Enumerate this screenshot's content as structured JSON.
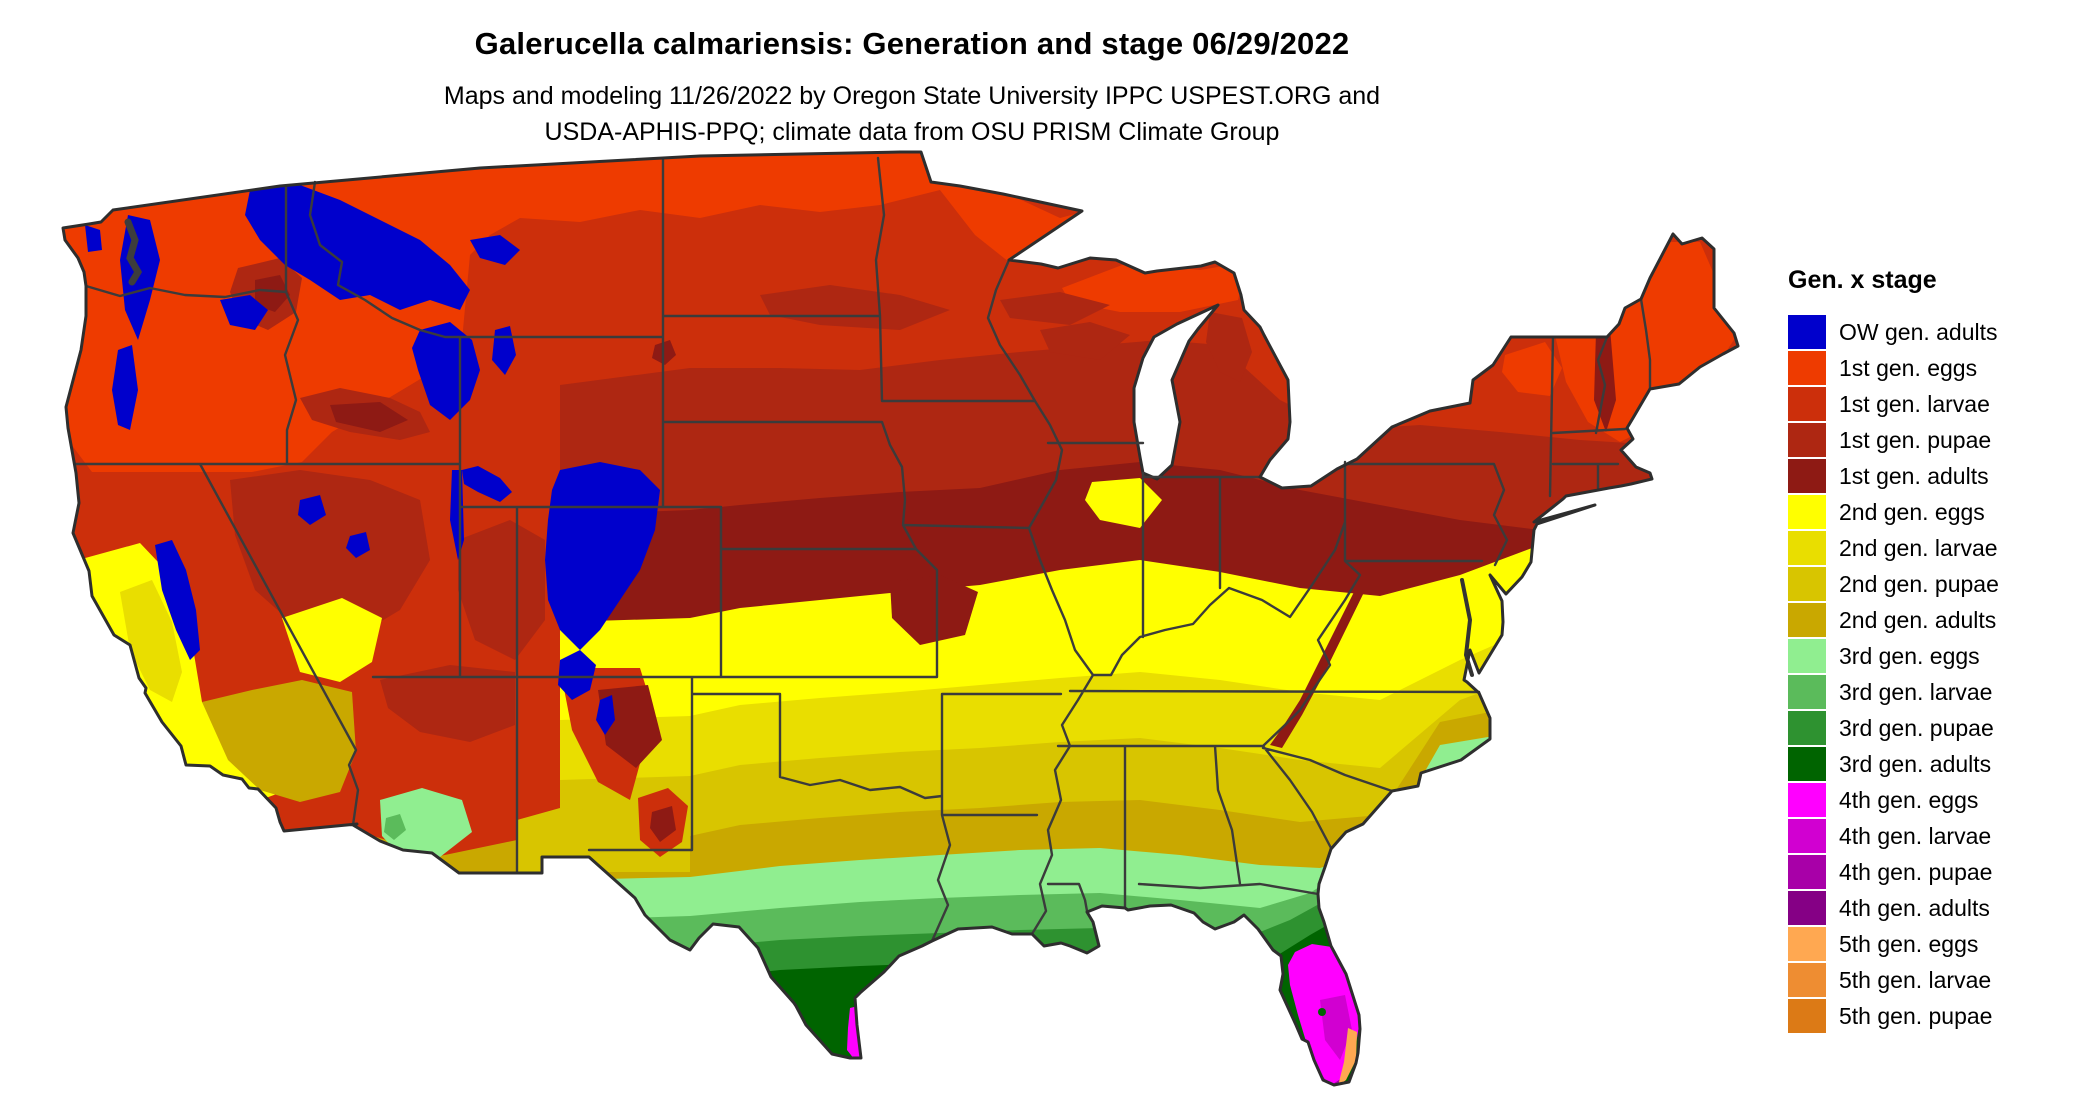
{
  "header": {
    "title": "Galerucella calmariensis: Generation and stage 06/29/2022",
    "subtitle_line1": "Maps and modeling 11/26/2022 by Oregon State University IPPC USPEST.ORG and",
    "subtitle_line2": "USDA-APHIS-PPQ; climate data from OSU PRISM Climate Group"
  },
  "legend": {
    "title": "Gen. x stage",
    "items": [
      {
        "label": "OW gen. adults",
        "color": "#0000CC"
      },
      {
        "label": "1st gen. eggs",
        "color": "#EE3B00"
      },
      {
        "label": "1st gen. larvae",
        "color": "#CC2F0B"
      },
      {
        "label": "1st gen. pupae",
        "color": "#AE2712"
      },
      {
        "label": "1st gen. adults",
        "color": "#8E1A14"
      },
      {
        "label": "2nd gen. eggs",
        "color": "#FFFF00"
      },
      {
        "label": "2nd gen. larvae",
        "color": "#E9DE00"
      },
      {
        "label": "2nd gen. pupae",
        "color": "#D8C500"
      },
      {
        "label": "2nd gen. adults",
        "color": "#C9A800"
      },
      {
        "label": "3rd gen. eggs",
        "color": "#90EE90"
      },
      {
        "label": "3rd gen. larvae",
        "color": "#5BBB5B"
      },
      {
        "label": "3rd gen. pupae",
        "color": "#2E9230"
      },
      {
        "label": "3rd gen. adults",
        "color": "#006400"
      },
      {
        "label": "4th gen. eggs",
        "color": "#FF00FF"
      },
      {
        "label": "4th gen. larvae",
        "color": "#D100D1"
      },
      {
        "label": "4th gen. pupae",
        "color": "#A800A8"
      },
      {
        "label": "4th gen. adults",
        "color": "#850085"
      },
      {
        "label": "5th gen. eggs",
        "color": "#FFA851"
      },
      {
        "label": "5th gen. larvae",
        "color": "#EE8D32"
      },
      {
        "label": "5th gen. pupae",
        "color": "#DC7A16"
      }
    ]
  }
}
